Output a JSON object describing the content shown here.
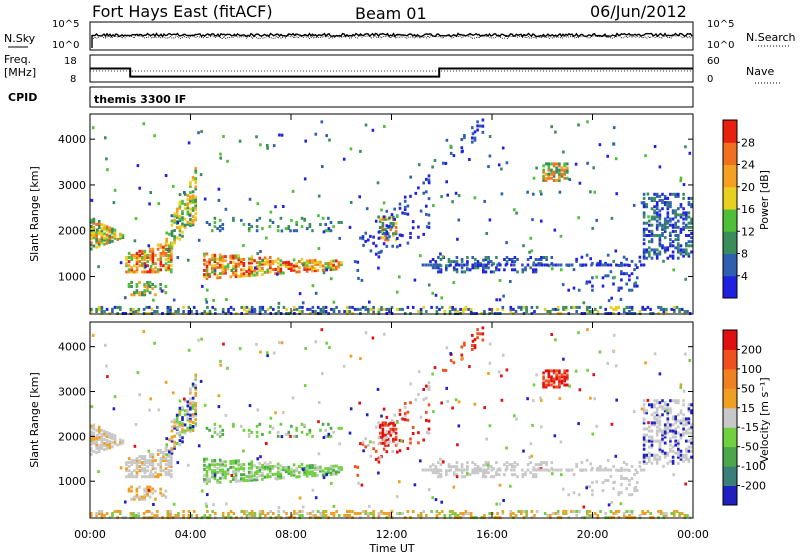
{
  "header": {
    "station": "Fort Hays East (fitACF)",
    "beam": "Beam 01",
    "date": "06/Jun/2012"
  },
  "top_panels": {
    "nsky_label": "N.Sky",
    "nsky_ticks": [
      "10^5",
      "10^0"
    ],
    "nsearch_label": "N.Search",
    "nsearch_ticks": [
      "10^5",
      "10^0"
    ],
    "freq_label_1": "Freq.",
    "freq_label_2": "[MHz]",
    "freq_ticks": [
      "18",
      "8"
    ],
    "nave_label": "Nave",
    "nave_ticks": [
      "60",
      "0"
    ],
    "cpid_label": "CPID",
    "cpid_text": "themis 3300 IF"
  },
  "power_colorbar": {
    "label": "Power [dB]",
    "ticks": [
      "28",
      "24",
      "20",
      "16",
      "12",
      "8",
      "4"
    ],
    "colors": [
      "#2020e0",
      "#2f5fb0",
      "#3a8c5a",
      "#4fbf3a",
      "#e8d020",
      "#f5a020",
      "#f07020",
      "#e82010"
    ]
  },
  "velocity_colorbar": {
    "label": "Velocity [m s⁻¹]",
    "ticks": [
      "200",
      "100",
      "50",
      "15",
      "-15",
      "-50",
      "-100",
      "-200"
    ],
    "colors": [
      "#2020c0",
      "#3a7f7a",
      "#48a84a",
      "#70d040",
      "#c8c8c8",
      "#f0a020",
      "#f08020",
      "#f05020",
      "#e01010"
    ]
  },
  "chart_data": [
    {
      "type": "heatmap",
      "name": "power",
      "ylabel": "Slant Range [km]",
      "ylim": [
        180,
        4550
      ],
      "yticks": [
        "4000",
        "3000",
        "2000",
        "1000"
      ],
      "xlim": [
        0,
        24
      ],
      "xticks": [
        "00:00",
        "04:00",
        "08:00",
        "12:00",
        "16:00",
        "20:00",
        "00:00"
      ],
      "xlabel": "Time UT"
    },
    {
      "type": "heatmap",
      "name": "velocity",
      "ylabel": "Slant Range [km]",
      "ylim": [
        180,
        4550
      ],
      "yticks": [
        "4000",
        "3000",
        "2000",
        "1000"
      ],
      "xlim": [
        0,
        24
      ],
      "xticks": [
        "00:00",
        "04:00",
        "08:00",
        "12:00",
        "16:00",
        "20:00",
        "00:00"
      ],
      "xlabel": "Time UT"
    },
    {
      "type": "line",
      "name": "frequency",
      "x": [
        0,
        1.6,
        1.6,
        13.9,
        13.9,
        24
      ],
      "y": [
        13,
        13,
        10,
        10,
        13,
        13
      ]
    }
  ]
}
